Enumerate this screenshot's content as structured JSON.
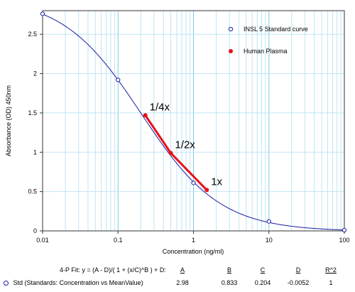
{
  "chart_data": {
    "type": "scatter",
    "xlabel": "Concentration (ng/ml)",
    "ylabel": "Absorbance (OD) 450nm",
    "x_scale": "log",
    "xlim": [
      0.01,
      100
    ],
    "ylim": [
      0,
      2.8
    ],
    "x_ticks": [
      "0.01",
      "0.1",
      "1",
      "10",
      "100"
    ],
    "y_ticks": [
      "0",
      "0.5",
      "1",
      "1.5",
      "2",
      "2.5"
    ],
    "grid": true,
    "legend_position": "top-right",
    "legend": [
      {
        "label": "INSL 5 Standard curve",
        "marker": "open-circle",
        "color": "#1a1aa0"
      },
      {
        "label": "Human Plasma",
        "marker": "filled-circle",
        "color": "#e8101a"
      }
    ],
    "series": [
      {
        "name": "INSL 5 Standard curve",
        "x": [
          0.01,
          0.1,
          1,
          10,
          100
        ],
        "y": [
          2.76,
          1.92,
          0.61,
          0.12,
          0.01
        ],
        "color": "#1a1aa0"
      },
      {
        "name": "Human Plasma",
        "x": [
          0.23,
          0.5,
          1.5
        ],
        "y": [
          1.47,
          0.99,
          0.52
        ],
        "color": "#e8101a",
        "point_labels": [
          "1/4x",
          "1/2x",
          "1x"
        ]
      }
    ],
    "fit": {
      "model": "4-P",
      "A": 2.98,
      "B": 0.833,
      "C": 0.204,
      "D": -0.0052
    }
  },
  "fit_table": {
    "equation": "4-P Fit: y = (A - D)/( 1 + (x/C)^B ) + D:",
    "headers": [
      "A",
      "B",
      "C",
      "D",
      "R^2"
    ],
    "row_label": "Std (Standards: Concentration vs MeanValue)",
    "values": [
      "2.98",
      "0.833",
      "0.204",
      "-0.0052",
      "1"
    ]
  }
}
